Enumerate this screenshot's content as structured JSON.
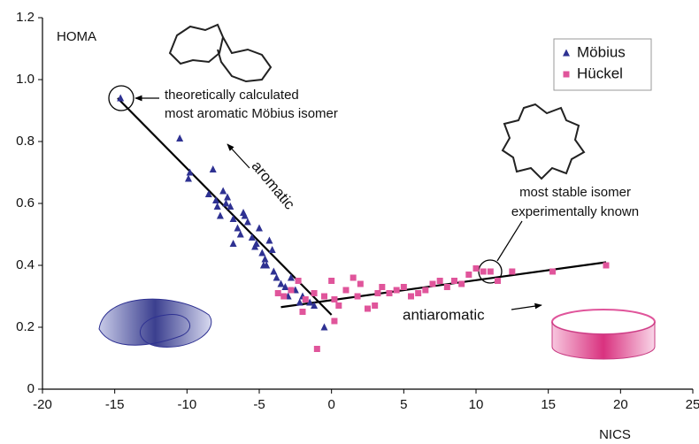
{
  "chart_data": {
    "type": "scatter",
    "ylabel": "HOMA",
    "xlabel": "NICS",
    "xlim": [
      -20,
      25
    ],
    "xticks": [
      -20,
      -15,
      -10,
      -5,
      0,
      5,
      10,
      15,
      20,
      25
    ],
    "ylim": [
      0,
      1.2
    ],
    "yticks": [
      0,
      0.2,
      0.4,
      0.6,
      0.8,
      {
        "value": 1,
        "label": "1.0"
      },
      1.2
    ],
    "legend": "top-right",
    "series": [
      {
        "name": "Möbius",
        "color": "#2e3192",
        "marker": "triangle",
        "x": [
          -14.6,
          -10.5,
          -9.8,
          -9.9,
          -8.2,
          -8.5,
          -8.0,
          -7.9,
          -7.7,
          -7.5,
          -7.2,
          -7.0,
          -6.8,
          -6.5,
          -6.3,
          -6.8,
          -6.0,
          -5.8,
          -5.5,
          -5.3,
          -5.0,
          -4.8,
          -4.6,
          -4.5,
          -4.3,
          -4.1,
          -4.0,
          -3.8,
          -3.5,
          -3.2,
          -3.0,
          -2.8,
          -2.5,
          -2.2,
          -2.0,
          -1.5,
          -1.2,
          -0.5,
          -4.7,
          -5.2,
          -6.1,
          -7.3
        ],
        "values": [
          0.94,
          0.81,
          0.7,
          0.68,
          0.71,
          0.63,
          0.61,
          0.59,
          0.56,
          0.64,
          0.62,
          0.59,
          0.55,
          0.52,
          0.5,
          0.47,
          0.56,
          0.54,
          0.49,
          0.46,
          0.52,
          0.44,
          0.42,
          0.4,
          0.48,
          0.45,
          0.38,
          0.36,
          0.34,
          0.33,
          0.3,
          0.36,
          0.32,
          0.28,
          0.3,
          0.28,
          0.27,
          0.2,
          0.4,
          0.47,
          0.57,
          0.6
        ]
      },
      {
        "name": "Hückel",
        "color": "#e0559b",
        "marker": "square",
        "x": [
          -3.7,
          -3.3,
          -2.8,
          -2.3,
          -1.8,
          -1.2,
          -1.0,
          -0.5,
          0,
          0.2,
          0.5,
          1.0,
          1.5,
          1.8,
          2.0,
          2.5,
          3.0,
          3.2,
          3.5,
          4.0,
          4.5,
          5.0,
          5.5,
          6.0,
          6.5,
          7.0,
          7.5,
          8.0,
          8.5,
          9.0,
          9.5,
          10.0,
          10.5,
          11.0,
          11.5,
          12.5,
          15.3,
          19.0,
          -2.0,
          0.2
        ],
        "values": [
          0.31,
          0.3,
          0.32,
          0.35,
          0.29,
          0.31,
          0.13,
          0.3,
          0.35,
          0.29,
          0.27,
          0.32,
          0.36,
          0.3,
          0.34,
          0.26,
          0.27,
          0.31,
          0.33,
          0.31,
          0.32,
          0.33,
          0.3,
          0.31,
          0.32,
          0.34,
          0.35,
          0.33,
          0.35,
          0.34,
          0.37,
          0.39,
          0.38,
          0.38,
          0.35,
          0.38,
          0.38,
          0.4,
          0.25,
          0.22
        ]
      }
    ],
    "lines": [
      {
        "x": [
          -14.8,
          0
        ],
        "y": [
          0.94,
          0.24
        ]
      },
      {
        "x": [
          -3.5,
          19
        ],
        "y": [
          0.265,
          0.41
        ]
      }
    ],
    "annotations": [
      "theoretically calculated",
      "most aromatic Möbius isomer",
      "most stable isomer",
      "experimentally known",
      "aromatic",
      "antiaromatic"
    ]
  }
}
